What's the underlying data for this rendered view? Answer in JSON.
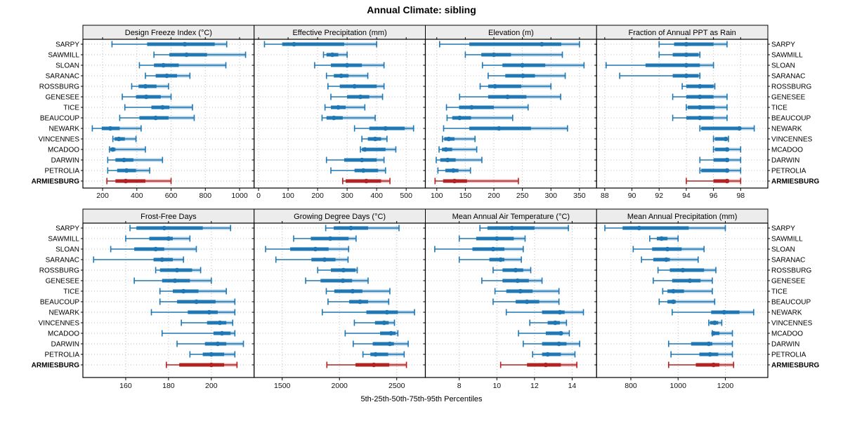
{
  "title": "Annual Climate: sibling",
  "caption": "5th-25th-50th-75th-95th Percentiles",
  "colors": {
    "series": "#1f77b4",
    "highlight": "#b22222",
    "strip_bg": "#ececec",
    "panel_border": "#000000",
    "grid": "#bdbdbd",
    "text": "#000000"
  },
  "sites": [
    "SARPY",
    "SAWMILL",
    "SLOAN",
    "SARANAC",
    "ROSSBURG",
    "GENESEE",
    "TICE",
    "BEAUCOUP",
    "NEWARK",
    "VINCENNES",
    "MCADOO",
    "DARWIN",
    "PETROLIA",
    "ARMIESBURG"
  ],
  "highlight_site": "ARMIESBURG",
  "chart_data": {
    "type": "percentile-range-trellis",
    "percentile_labels": [
      "5th",
      "25th",
      "50th",
      "75th",
      "95th"
    ],
    "layout": {
      "rows": 2,
      "cols": 4,
      "site_labels_both_sides": true,
      "grid": "dotted"
    },
    "panels": [
      {
        "title": "Design Freeze Index (°C)",
        "xlim": [
          85,
          1085
        ],
        "ticks": [
          200,
          400,
          600,
          800,
          1000
        ],
        "values": [
          [
            255,
            460,
            680,
            855,
            925
          ],
          [
            500,
            590,
            690,
            810,
            1035
          ],
          [
            415,
            500,
            555,
            645,
            920
          ],
          [
            450,
            510,
            575,
            635,
            710
          ],
          [
            370,
            410,
            450,
            515,
            585
          ],
          [
            315,
            395,
            455,
            540,
            600
          ],
          [
            330,
            485,
            550,
            590,
            725
          ],
          [
            300,
            415,
            510,
            585,
            735
          ],
          [
            140,
            195,
            245,
            300,
            425
          ],
          [
            260,
            270,
            295,
            330,
            395
          ],
          [
            240,
            245,
            260,
            275,
            450
          ],
          [
            230,
            275,
            325,
            380,
            550
          ],
          [
            230,
            285,
            340,
            395,
            475
          ],
          [
            225,
            275,
            335,
            450,
            600
          ]
        ]
      },
      {
        "title": "Effective Precipitation (mm)",
        "xlim": [
          -15,
          565
        ],
        "ticks": [
          0,
          100,
          200,
          300,
          400,
          500
        ],
        "values": [
          [
            20,
            80,
            120,
            290,
            400
          ],
          [
            220,
            230,
            250,
            270,
            300
          ],
          [
            190,
            245,
            300,
            350,
            425
          ],
          [
            230,
            255,
            280,
            305,
            370
          ],
          [
            235,
            275,
            325,
            400,
            425
          ],
          [
            245,
            300,
            345,
            375,
            420
          ],
          [
            225,
            245,
            270,
            295,
            360
          ],
          [
            215,
            230,
            255,
            285,
            395
          ],
          [
            325,
            375,
            430,
            495,
            525
          ],
          [
            350,
            370,
            395,
            415,
            435
          ],
          [
            345,
            350,
            360,
            430,
            465
          ],
          [
            230,
            290,
            350,
            400,
            425
          ],
          [
            245,
            325,
            355,
            405,
            430
          ],
          [
            285,
            295,
            365,
            415,
            445
          ]
        ]
      },
      {
        "title": "Elevation (m)",
        "xlim": [
          80,
          380
        ],
        "ticks": [
          100,
          150,
          200,
          250,
          300,
          350
        ],
        "values": [
          [
            105,
            157,
            284,
            318,
            350
          ],
          [
            150,
            178,
            200,
            230,
            320
          ],
          [
            180,
            215,
            250,
            290,
            358
          ],
          [
            190,
            220,
            251,
            272,
            325
          ],
          [
            176,
            190,
            202,
            248,
            300
          ],
          [
            140,
            190,
            224,
            257,
            317
          ],
          [
            117,
            139,
            161,
            200,
            260
          ],
          [
            118,
            127,
            140,
            160,
            233
          ],
          [
            112,
            157,
            209,
            265,
            329
          ],
          [
            110,
            113,
            121,
            131,
            167
          ],
          [
            104,
            109,
            116,
            127,
            170
          ],
          [
            99,
            106,
            119,
            133,
            179
          ],
          [
            102,
            115,
            129,
            138,
            159
          ],
          [
            97,
            111,
            131,
            153,
            243
          ]
        ]
      },
      {
        "title": "Fraction of Annual PPT as Rain",
        "xlim": [
          87.4,
          100
        ],
        "ticks": [
          88,
          90,
          92,
          94,
          96,
          98
        ],
        "values": [
          [
            92,
            93.1,
            94,
            96,
            97
          ],
          [
            92,
            93,
            94,
            94.9,
            95
          ],
          [
            88.1,
            91,
            94,
            95,
            96
          ],
          [
            89.1,
            93,
            94,
            94.9,
            95
          ],
          [
            93.7,
            94,
            95,
            96,
            96.1
          ],
          [
            93,
            94,
            95,
            96,
            97
          ],
          [
            94,
            94.1,
            95,
            96.1,
            97
          ],
          [
            93,
            94,
            95,
            96,
            97
          ],
          [
            95,
            95.1,
            97.9,
            98,
            99
          ],
          [
            96,
            96.1,
            96.9,
            97,
            97.1
          ],
          [
            96,
            96.1,
            97,
            97.1,
            98
          ],
          [
            95,
            96,
            97,
            97.1,
            98
          ],
          [
            95,
            95.1,
            97,
            97.1,
            98
          ],
          [
            94,
            96,
            97,
            97.1,
            98
          ]
        ]
      },
      {
        "title": "Frost-Free Days",
        "xlim": [
          140,
          220
        ],
        "ticks": [
          160,
          180,
          200
        ],
        "values": [
          [
            162,
            165,
            178,
            196,
            209
          ],
          [
            160,
            171,
            180,
            182,
            190
          ],
          [
            153,
            164,
            174,
            178,
            193
          ],
          [
            145,
            173,
            177,
            182,
            187
          ],
          [
            174,
            176,
            184,
            191,
            195
          ],
          [
            164,
            177,
            183,
            190,
            200
          ],
          [
            176,
            182,
            187,
            194,
            207
          ],
          [
            176,
            184,
            193,
            202,
            211
          ],
          [
            172,
            189,
            199,
            203,
            211
          ],
          [
            186,
            198,
            204,
            207,
            210
          ],
          [
            177,
            201,
            205,
            209,
            211
          ],
          [
            184,
            197,
            203,
            207,
            215
          ],
          [
            190,
            196,
            200,
            206,
            211
          ],
          [
            179,
            185,
            200,
            206,
            212
          ]
        ]
      },
      {
        "title": "Growing Degree Days (°C)",
        "xlim": [
          1255,
          2750
        ],
        "ticks": [
          1500,
          2000,
          2500
        ],
        "values": [
          [
            1880,
            1950,
            2100,
            2250,
            2520
          ],
          [
            1600,
            1750,
            1920,
            2080,
            2145
          ],
          [
            1355,
            1570,
            1790,
            1905,
            2080
          ],
          [
            1445,
            1755,
            1870,
            1965,
            2075
          ],
          [
            1810,
            1925,
            2035,
            2140,
            2155
          ],
          [
            1705,
            1835,
            2030,
            2110,
            2250
          ],
          [
            1885,
            1955,
            2115,
            2200,
            2440
          ],
          [
            1900,
            2085,
            2180,
            2250,
            2430
          ],
          [
            1850,
            2235,
            2415,
            2510,
            2655
          ],
          [
            2130,
            2310,
            2390,
            2430,
            2480
          ],
          [
            2050,
            2355,
            2450,
            2490,
            2510
          ],
          [
            2120,
            2290,
            2440,
            2475,
            2600
          ],
          [
            2205,
            2270,
            2315,
            2425,
            2565
          ],
          [
            1890,
            2140,
            2300,
            2435,
            2585
          ]
        ]
      },
      {
        "title": "Mean Annual Air Temperature (°C)",
        "xlim": [
          6.2,
          15.3
        ],
        "ticks": [
          8,
          10,
          12,
          14
        ],
        "values": [
          [
            9.1,
            9.5,
            10.8,
            12.0,
            13.8
          ],
          [
            8.0,
            8.9,
            10.0,
            10.9,
            11.5
          ],
          [
            6.7,
            8.7,
            9.8,
            10.4,
            11.4
          ],
          [
            8.0,
            9.6,
            10.2,
            10.4,
            11.3
          ],
          [
            9.8,
            10.3,
            11.0,
            11.4,
            11.8
          ],
          [
            9.2,
            10.3,
            11.1,
            11.7,
            12.4
          ],
          [
            9.9,
            10.5,
            11.25,
            11.9,
            13.3
          ],
          [
            9.8,
            11.0,
            11.6,
            12.25,
            13.3
          ],
          [
            10.5,
            12.4,
            13.35,
            13.6,
            14.6
          ],
          [
            11.75,
            12.7,
            13.1,
            13.35,
            13.7
          ],
          [
            11.15,
            12.6,
            13.4,
            13.5,
            13.85
          ],
          [
            11.4,
            12.4,
            13.3,
            13.7,
            14.4
          ],
          [
            11.9,
            12.4,
            12.7,
            13.4,
            14.15
          ],
          [
            10.2,
            11.6,
            12.6,
            13.4,
            14.25
          ]
        ]
      },
      {
        "title": "Mean Annual Precipitation (mm)",
        "xlim": [
          655,
          1380
        ],
        "ticks": [
          800,
          1000,
          1200
        ],
        "values": [
          [
            690,
            765,
            835,
            1045,
            1200
          ],
          [
            880,
            910,
            930,
            955,
            1000
          ],
          [
            810,
            890,
            955,
            1015,
            1110
          ],
          [
            845,
            895,
            950,
            965,
            1085
          ],
          [
            915,
            965,
            1020,
            1110,
            1160
          ],
          [
            895,
            975,
            1050,
            1095,
            1145
          ],
          [
            935,
            955,
            980,
            1025,
            1145
          ],
          [
            920,
            955,
            980,
            990,
            1155
          ],
          [
            975,
            1140,
            1195,
            1260,
            1320
          ],
          [
            1130,
            1135,
            1155,
            1170,
            1185
          ],
          [
            1145,
            1145,
            1150,
            1175,
            1230
          ],
          [
            960,
            1055,
            1130,
            1145,
            1230
          ],
          [
            970,
            1090,
            1135,
            1170,
            1230
          ],
          [
            960,
            1075,
            1150,
            1175,
            1235
          ]
        ]
      }
    ]
  }
}
